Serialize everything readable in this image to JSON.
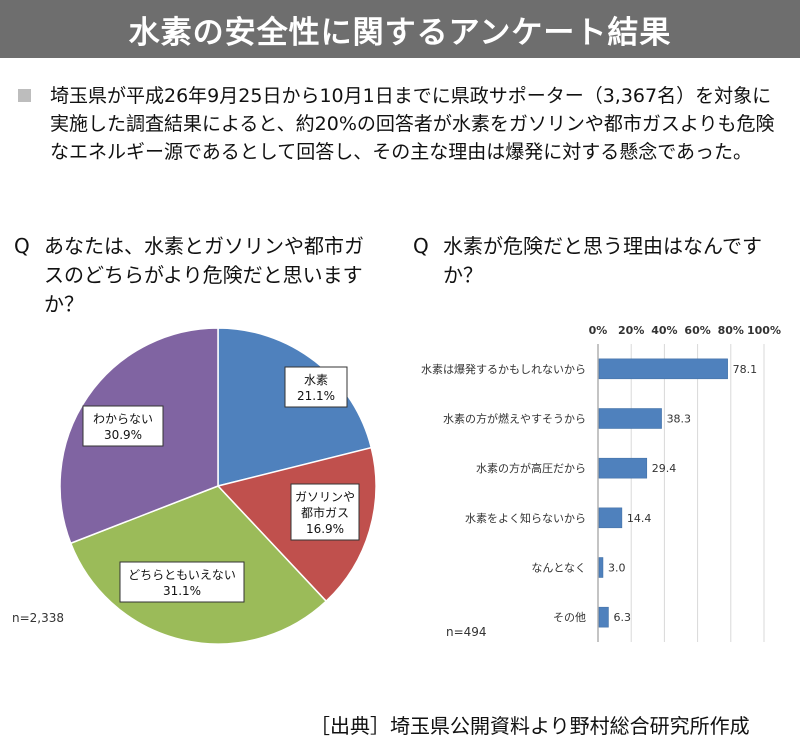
{
  "title": "水素の安全性に関するアンケート結果",
  "summary": "埼玉県が平成26年9月25日から10月1日までに県政サポーター（3,367名）を対象に実施した調査結果によると、約20%の回答者が水素をガソリンや都市ガスよりも危険なエネルギー源であるとして回答し、その主な理由は爆発に対する懸念であった。",
  "question1": {
    "mark": "Q",
    "text": "あなたは、水素とガソリンや都市ガスのどちらがより危険だと思いますか？"
  },
  "question2": {
    "mark": "Q",
    "text": "水素が危険だと思う理由はなんですか？"
  },
  "source": "［出典］埼玉県公開資料より野村総合研究所作成",
  "colors": {
    "blue": "#4f81bd",
    "red": "#c0504d",
    "green": "#9bbb59",
    "purple": "#8064a2",
    "title_bg": "#6e6e6e"
  },
  "chart_data": [
    {
      "type": "pie",
      "n_label": "n=2,338",
      "slices": [
        {
          "lines": [
            "水素",
            "21.1%"
          ],
          "value": 21.1,
          "color": "#4f81bd"
        },
        {
          "lines": [
            "ガソリンや",
            "都市ガス",
            "16.9%"
          ],
          "value": 16.9,
          "color": "#c0504d"
        },
        {
          "lines": [
            "どちらともいえない",
            "31.1%"
          ],
          "value": 31.1,
          "color": "#9bbb59"
        },
        {
          "lines": [
            "わからない",
            "30.9%"
          ],
          "value": 30.9,
          "color": "#8064a2"
        }
      ]
    },
    {
      "type": "bar",
      "orientation": "horizontal",
      "n_label": "n=494",
      "xlim": [
        0,
        100
      ],
      "xticks": [
        "0%",
        "20%",
        "40%",
        "60%",
        "80%",
        "100%"
      ],
      "categories": [
        "水素は爆発するかもしれないから",
        "水素の方が燃えやすそうから",
        "水素の方が高圧だから",
        "水素をよく知らないから",
        "なんとなく",
        "その他"
      ],
      "values": [
        78.1,
        38.3,
        29.4,
        14.4,
        3.0,
        6.3
      ],
      "value_labels": [
        "78.1",
        "38.3",
        "29.4",
        "14.4",
        "3.0",
        "6.3"
      ],
      "color": "#4f81bd",
      "grid": true
    }
  ]
}
